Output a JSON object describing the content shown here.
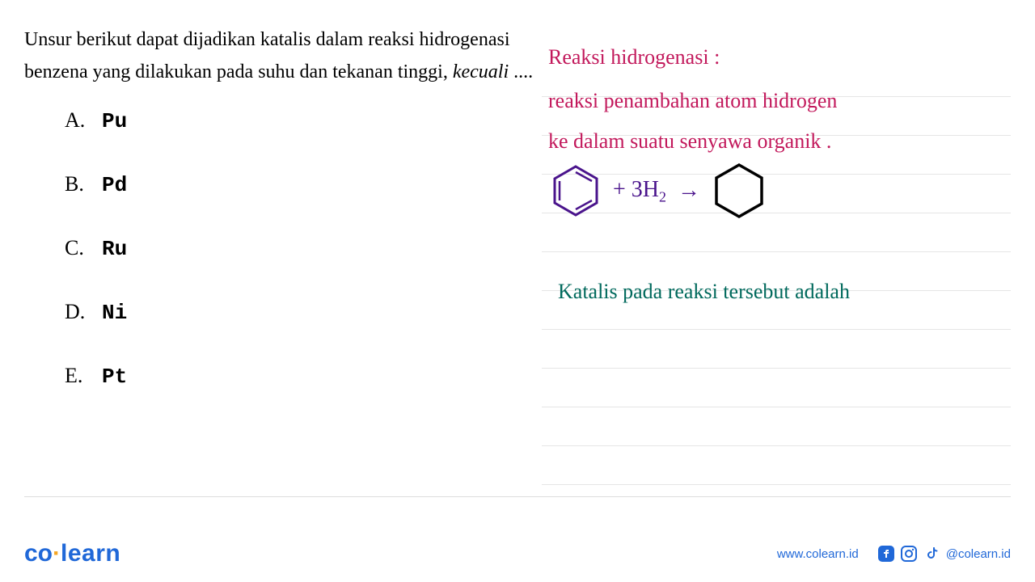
{
  "question": {
    "text_part1": "Unsur berikut dapat dijadikan katalis dalam reaksi hidrogenasi benzena yang dilakukan pada suhu dan tekanan tinggi, ",
    "text_italic": "kecuali",
    "text_part2": " ....",
    "options": [
      {
        "letter": "A.",
        "value": "Pu"
      },
      {
        "letter": "B.",
        "value": "Pd"
      },
      {
        "letter": "C.",
        "value": "Ru"
      },
      {
        "letter": "D.",
        "value": "Ni"
      },
      {
        "letter": "E.",
        "value": "Pt"
      }
    ]
  },
  "handwriting": {
    "title": "Reaksi hidrogenasi :",
    "line2": "reaksi penambahan atom hidrogen",
    "line3": "ke dalam suatu senyawa organik .",
    "equation_plus": "+ 3H",
    "equation_sub": "2",
    "equation_arrow": "→",
    "catalyst": "Katalis pada reaksi tersebut adalah",
    "title_color": "#c2185b",
    "body_color": "#c2185b",
    "equation_color": "#4a148c",
    "catalyst_color": "#00695c",
    "benzene_stroke": "#4a148c",
    "cyclohexane_stroke": "#000000"
  },
  "footer": {
    "logo_co": "co",
    "logo_learn": "learn",
    "website": "www.colearn.id",
    "handle": "@colearn.id",
    "brand_color": "#2068d8"
  },
  "ruled_line_count": 11,
  "ruled_line_color": "#e5e5e5"
}
